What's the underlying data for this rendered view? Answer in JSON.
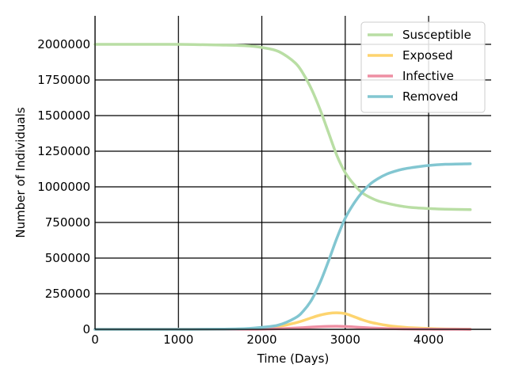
{
  "chart_data": {
    "type": "line",
    "xlabel": "Time (Days)",
    "ylabel": "Number of Individuals",
    "xlim": [
      0,
      4750
    ],
    "ylim": [
      0,
      2200000
    ],
    "xticks": [
      0,
      1000,
      2000,
      3000,
      4000
    ],
    "xtick_labels": [
      "0",
      "1000",
      "2000",
      "3000",
      "4000"
    ],
    "yticks": [
      0,
      250000,
      500000,
      750000,
      1000000,
      1250000,
      1500000,
      1750000,
      2000000
    ],
    "ytick_labels": [
      "0",
      "250000",
      "500000",
      "750000",
      "1000000",
      "1250000",
      "1500000",
      "1750000",
      "2000000"
    ],
    "grid": true,
    "legend_position": "top-right",
    "x": [
      0,
      500,
      1000,
      1500,
      1800,
      2000,
      2200,
      2400,
      2500,
      2600,
      2700,
      2800,
      2900,
      3000,
      3100,
      3200,
      3300,
      3400,
      3500,
      3600,
      3700,
      3800,
      4000,
      4200,
      4500
    ],
    "series": [
      {
        "name": "Susceptible",
        "color": "#b9dea4",
        "values": [
          2000000,
          2000000,
          2000000,
          1995000,
          1990000,
          1978000,
          1950000,
          1870000,
          1790000,
          1680000,
          1540000,
          1380000,
          1220000,
          1100000,
          1020000,
          960000,
          925000,
          900000,
          885000,
          872000,
          862000,
          855000,
          848000,
          843000,
          840000
        ]
      },
      {
        "name": "Exposed",
        "color": "#fdd46f",
        "values": [
          0,
          0,
          0,
          500,
          2500,
          7000,
          20000,
          45000,
          62000,
          82000,
          100000,
          112000,
          116000,
          110000,
          90000,
          68000,
          50000,
          38000,
          28000,
          20000,
          15000,
          11000,
          6000,
          3000,
          1000
        ]
      },
      {
        "name": "Infective",
        "color": "#ee8fa3",
        "values": [
          0,
          0,
          0,
          100,
          500,
          1500,
          4000,
          9000,
          12000,
          16000,
          19000,
          21000,
          21500,
          20000,
          17000,
          13000,
          10000,
          7500,
          5500,
          4000,
          3000,
          2200,
          1200,
          600,
          200
        ]
      },
      {
        "name": "Removed",
        "color": "#82c6d1",
        "values": [
          0,
          0,
          0,
          1500,
          5000,
          14000,
          30000,
          80000,
          130000,
          210000,
          330000,
          480000,
          640000,
          780000,
          880000,
          960000,
          1020000,
          1060000,
          1090000,
          1110000,
          1125000,
          1135000,
          1150000,
          1158000,
          1162000
        ]
      }
    ]
  }
}
